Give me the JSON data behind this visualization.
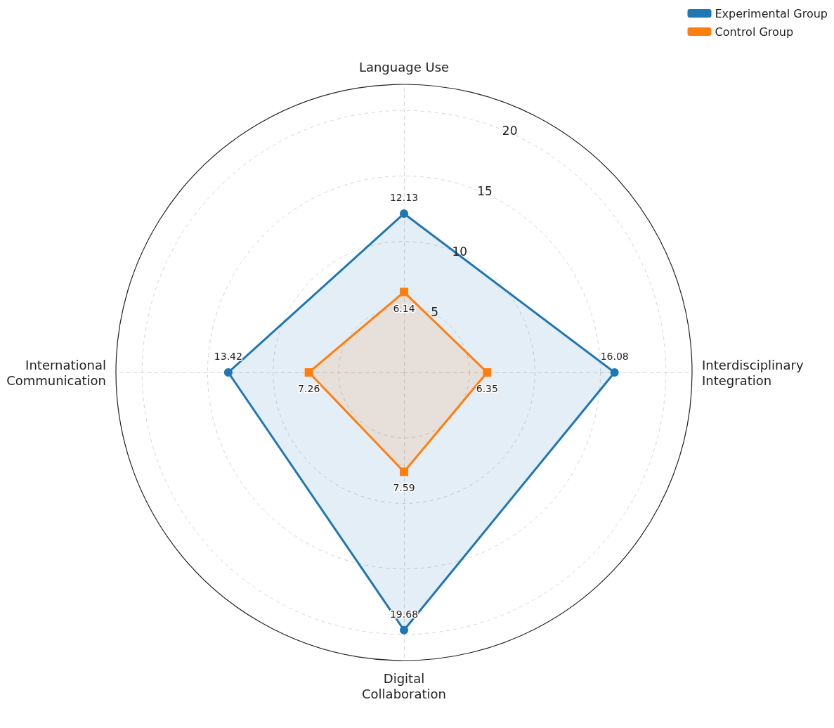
{
  "chart_data": {
    "type": "radar",
    "categories": [
      "Language Use",
      "Interdisciplinary Integration",
      "Digital Collaboration",
      "International Communication"
    ],
    "series": [
      {
        "name": "Experimental Group",
        "color": "#1f77b4",
        "marker": "circle",
        "values": [
          12.13,
          16.08,
          19.68,
          13.42
        ]
      },
      {
        "name": "Control Group",
        "color": "#ff7f0e",
        "marker": "square",
        "values": [
          6.14,
          6.35,
          7.59,
          7.26
        ]
      }
    ],
    "ylim": [
      0,
      22
    ],
    "yticks": [
      5,
      10,
      15,
      20
    ],
    "grid": true,
    "legend": "top right",
    "data_labels": true,
    "line_style": "solid"
  }
}
